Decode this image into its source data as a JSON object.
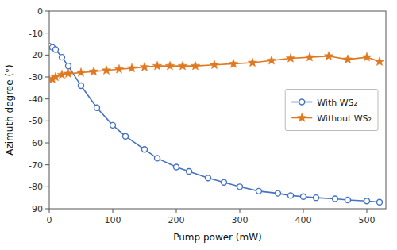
{
  "chart_data": {
    "type": "line",
    "xlabel": "Pump power (mW)",
    "ylabel": "Azimuth degree (°)",
    "series": [
      {
        "name": "With WS₂",
        "color": "#4472C4",
        "marker": "circle",
        "x": [
          0,
          5,
          10,
          20,
          30,
          50,
          75,
          100,
          120,
          150,
          170,
          200,
          220,
          250,
          275,
          300,
          330,
          360,
          380,
          400,
          420,
          450,
          470,
          500,
          520
        ],
        "values": [
          -16,
          -16.5,
          -17.5,
          -21,
          -25,
          -34,
          -44,
          -52,
          -57,
          -63,
          -67,
          -71,
          -73,
          -76,
          -78,
          -80,
          -82,
          -83,
          -84,
          -84.5,
          -85,
          -85.5,
          -86,
          -86.5,
          -87
        ]
      },
      {
        "name": "Without WS₂",
        "color": "#E07820",
        "marker": "star",
        "x": [
          0,
          5,
          10,
          20,
          30,
          50,
          70,
          90,
          110,
          130,
          150,
          170,
          190,
          210,
          230,
          260,
          290,
          320,
          350,
          380,
          410,
          440,
          470,
          500,
          520
        ],
        "values": [
          -31,
          -31,
          -30,
          -29,
          -28.5,
          -28,
          -27.5,
          -27,
          -26.5,
          -26,
          -25.5,
          -25,
          -25,
          -25,
          -25,
          -24.5,
          -24,
          -23.5,
          -22.5,
          -21.5,
          -21,
          -20.5,
          -22,
          -21,
          -23
        ]
      }
    ],
    "xlim": [
      0,
      530
    ],
    "xticks": [
      0,
      100,
      200,
      300,
      400,
      500
    ],
    "ylim": [
      -90,
      0
    ],
    "yticks": [
      0,
      -10,
      -20,
      -30,
      -40,
      -50,
      -60,
      -70,
      -80,
      -90
    ],
    "grid": false,
    "legend": "center right"
  }
}
